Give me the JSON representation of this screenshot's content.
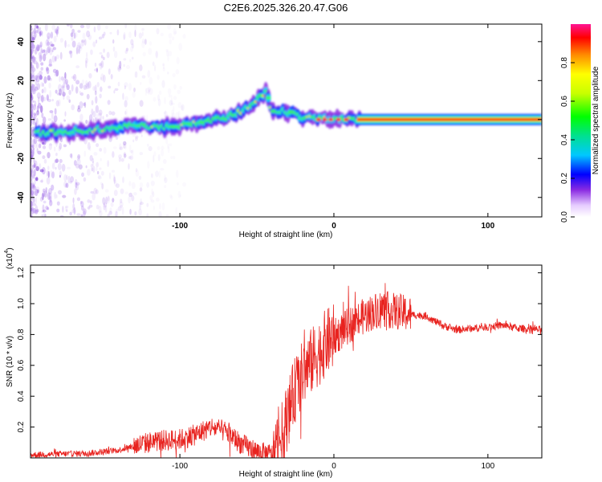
{
  "title": "C2E6.2025.326.20.47.G06",
  "colors": {
    "snr_line": "#e8231f",
    "frame": "#000000",
    "background": "#ffffff"
  },
  "chart_data": [
    {
      "type": "heatmap",
      "xlabel": "Height of straight line (km)",
      "ylabel": "Frequency (Hz)",
      "xlim": [
        -197,
        135
      ],
      "ylim": [
        -50,
        49
      ],
      "x_ticks": [
        "-100",
        "0",
        "100"
      ],
      "y_ticks": [
        "-40",
        "-20",
        "0",
        "20",
        "40"
      ],
      "colorbar_label": "Normalized spectral amplitude",
      "colorbar_range": [
        0,
        1
      ],
      "colorbar_ticks": [
        "0.0",
        "0.2",
        "0.4",
        "0.6",
        "0.8"
      ],
      "ridge": {
        "x": [
          -190,
          -170,
          -150,
          -130,
          -110,
          -90,
          -70,
          -58,
          -48,
          -44,
          -40,
          -30,
          -20,
          0,
          20,
          135
        ],
        "y": [
          -7,
          -6,
          -5,
          -3,
          -4,
          -2,
          1,
          5,
          12,
          14,
          5,
          4,
          1,
          0,
          0,
          0
        ]
      }
    },
    {
      "type": "line",
      "xlabel": "Height of straight line (km)",
      "ylabel": "SNR (10 * v/v)",
      "y_exponent_label": "(x10",
      "y_exponent": "4",
      "xlim": [
        -197,
        135
      ],
      "ylim": [
        0,
        1.25
      ],
      "x_ticks": [
        "-100",
        "0",
        "100"
      ],
      "y_ticks": [
        "0.2",
        "0.4",
        "0.6",
        "0.8",
        "1.0",
        "1.2"
      ],
      "series": [
        {
          "name": "SNR",
          "x": [
            -197,
            -160,
            -140,
            -125,
            -115,
            -100,
            -90,
            -80,
            -70,
            -60,
            -50,
            -40,
            -35,
            -30,
            -25,
            -20,
            -15,
            -10,
            -5,
            0,
            10,
            20,
            30,
            40,
            50,
            60,
            70,
            80,
            90,
            100,
            110,
            120,
            135
          ],
          "y": [
            0.02,
            0.03,
            0.05,
            0.09,
            0.11,
            0.12,
            0.15,
            0.2,
            0.17,
            0.09,
            0.04,
            0.02,
            0.1,
            0.28,
            0.45,
            0.55,
            0.62,
            0.68,
            0.75,
            0.78,
            0.86,
            0.92,
            0.97,
            0.95,
            0.93,
            0.92,
            0.86,
            0.83,
            0.84,
            0.85,
            0.86,
            0.84,
            0.83
          ]
        }
      ]
    }
  ]
}
